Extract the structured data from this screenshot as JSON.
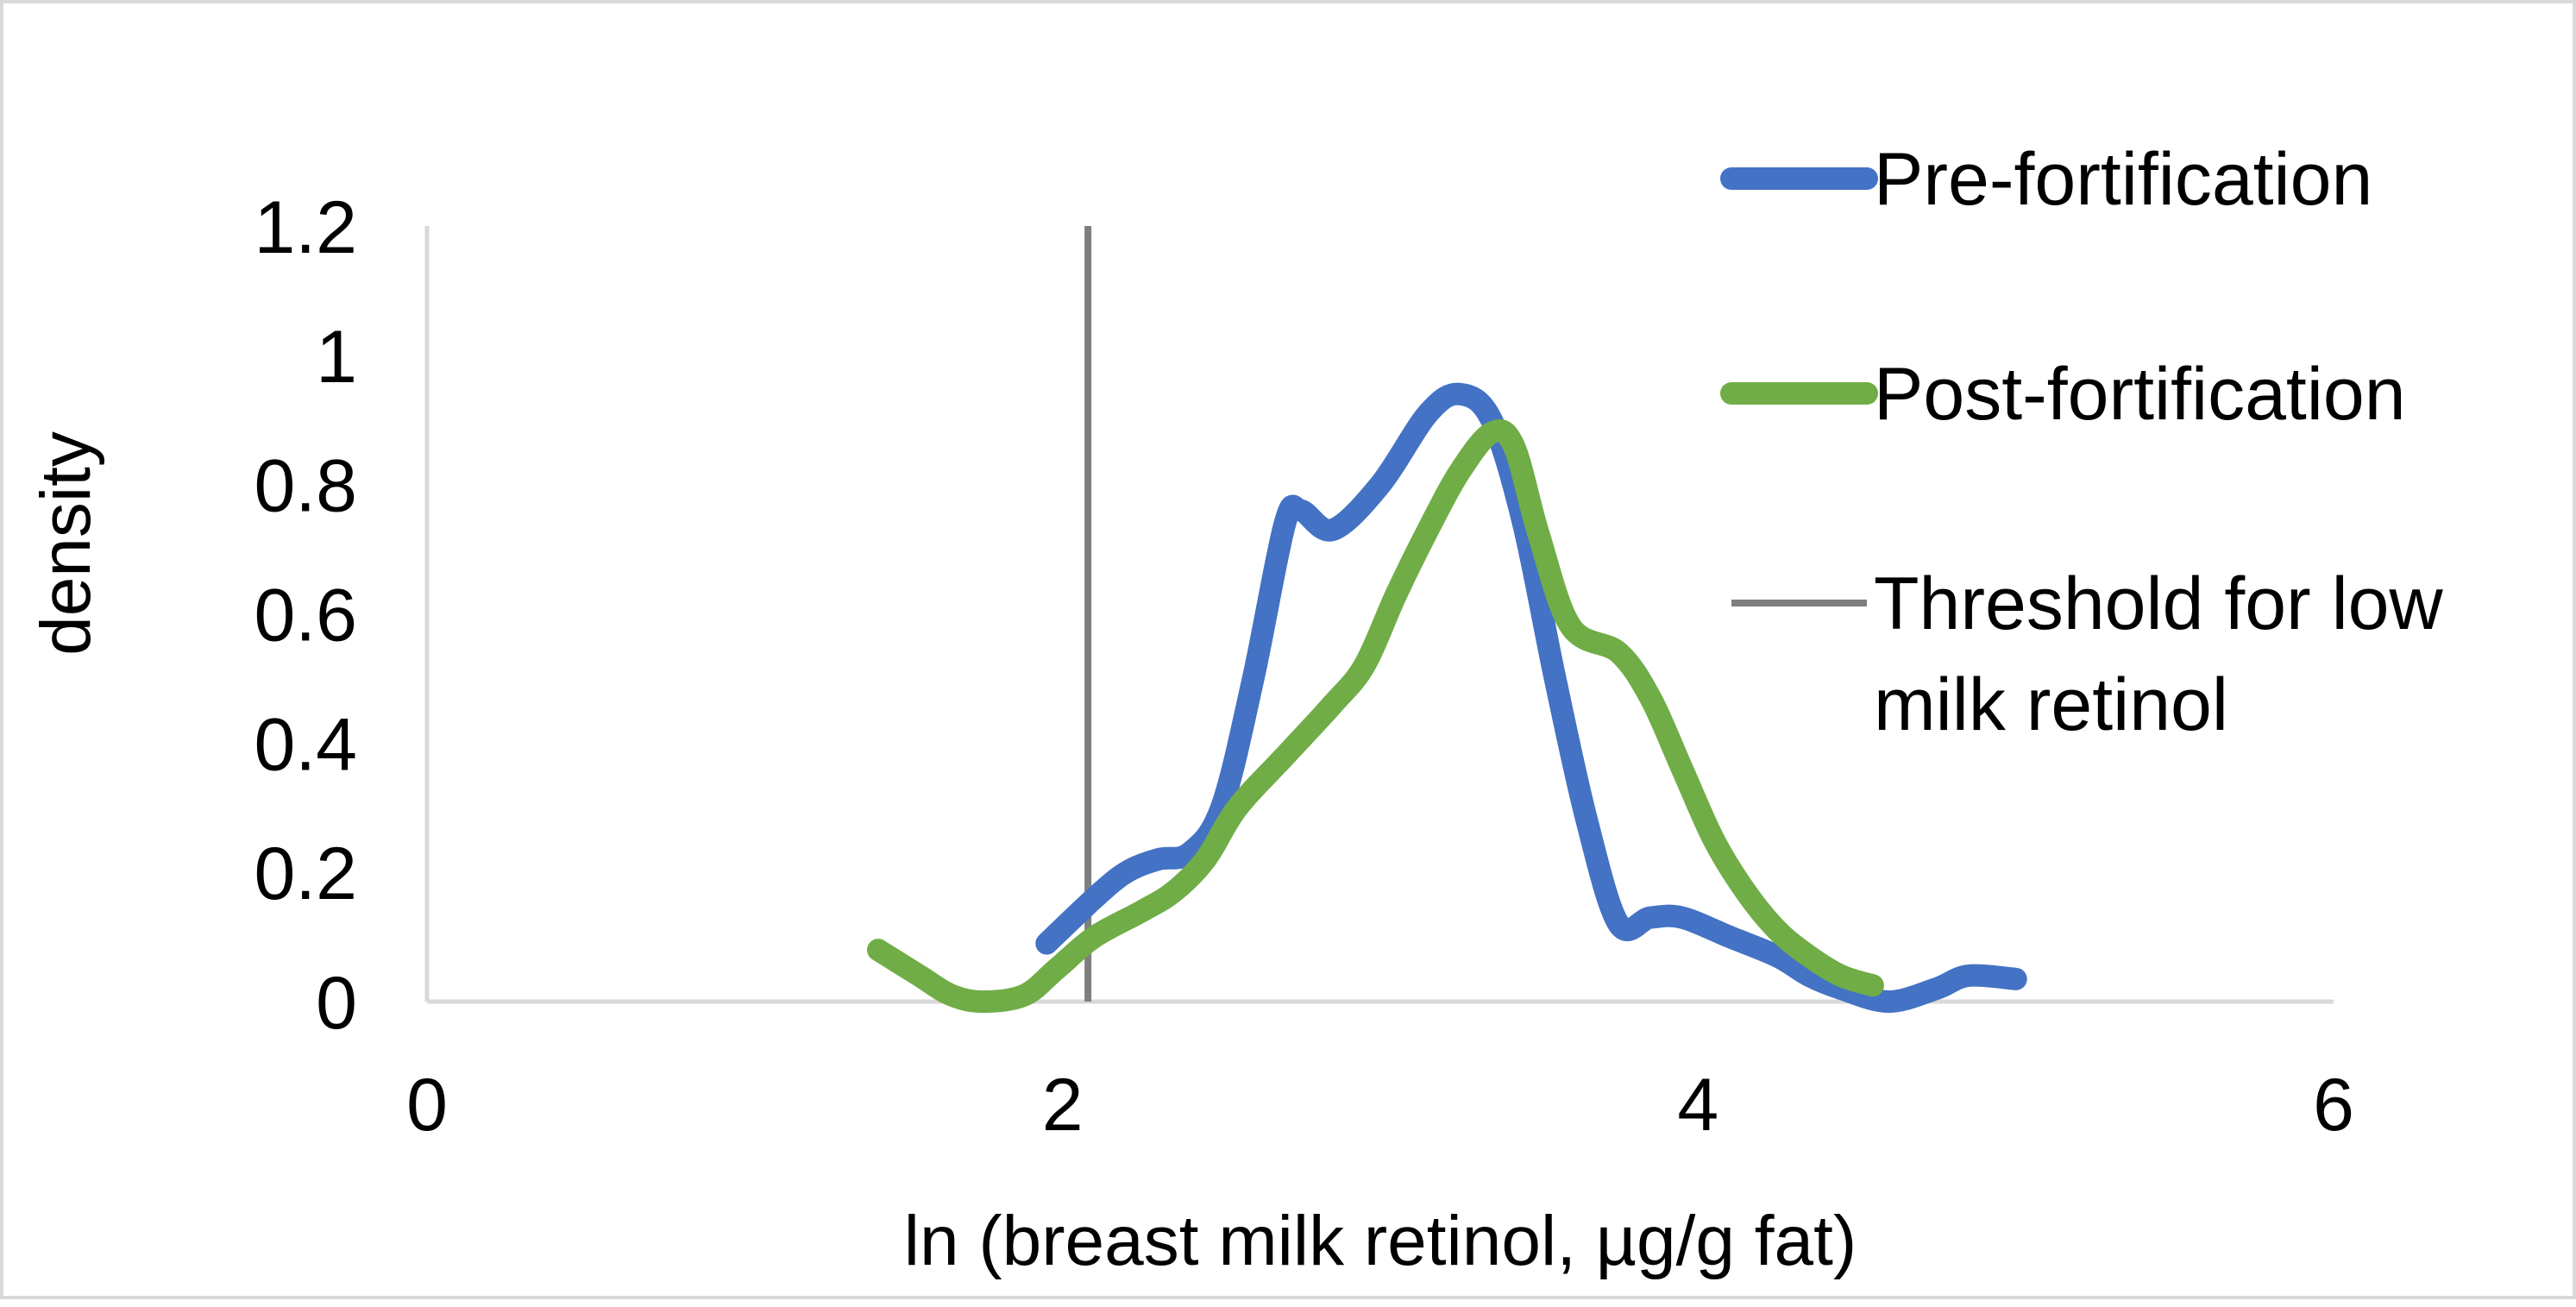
{
  "chart_data": {
    "type": "line",
    "title": "",
    "xlabel": "ln (breast milk retinol, µg/g fat)",
    "ylabel": "density",
    "xlim": [
      0,
      6
    ],
    "ylim": [
      0,
      1.2
    ],
    "x_ticks": [
      0,
      2,
      4,
      6
    ],
    "x_tick_labels": [
      "0",
      "2",
      "4",
      "6"
    ],
    "y_ticks": [
      0,
      0.2,
      0.4,
      0.6,
      0.8,
      1.0,
      1.2
    ],
    "y_tick_labels": [
      "0",
      "0.2",
      "0.4",
      "0.6",
      "0.8",
      "1",
      "1.2"
    ],
    "grid": false,
    "legend_position": "right",
    "series": [
      {
        "name": "Pre-fortification",
        "color": "#4472c4",
        "points": [
          [
            1.95,
            0.09
          ],
          [
            2.1,
            0.16
          ],
          [
            2.2,
            0.2
          ],
          [
            2.3,
            0.22
          ],
          [
            2.4,
            0.23
          ],
          [
            2.5,
            0.3
          ],
          [
            2.6,
            0.5
          ],
          [
            2.7,
            0.74
          ],
          [
            2.75,
            0.76
          ],
          [
            2.85,
            0.73
          ],
          [
            3.0,
            0.8
          ],
          [
            3.15,
            0.91
          ],
          [
            3.25,
            0.94
          ],
          [
            3.35,
            0.9
          ],
          [
            3.45,
            0.74
          ],
          [
            3.55,
            0.5
          ],
          [
            3.65,
            0.28
          ],
          [
            3.75,
            0.12
          ],
          [
            3.85,
            0.13
          ],
          [
            3.95,
            0.13
          ],
          [
            4.1,
            0.1
          ],
          [
            4.25,
            0.07
          ],
          [
            4.35,
            0.04
          ],
          [
            4.45,
            0.02
          ],
          [
            4.6,
            0.0
          ],
          [
            4.75,
            0.02
          ],
          [
            4.85,
            0.04
          ],
          [
            5.0,
            0.035
          ]
        ]
      },
      {
        "name": "Post-fortification",
        "color": "#70ad47",
        "points": [
          [
            1.42,
            0.08
          ],
          [
            1.55,
            0.04
          ],
          [
            1.65,
            0.01
          ],
          [
            1.75,
            0.0
          ],
          [
            1.88,
            0.01
          ],
          [
            1.98,
            0.05
          ],
          [
            2.1,
            0.1
          ],
          [
            2.25,
            0.14
          ],
          [
            2.35,
            0.17
          ],
          [
            2.45,
            0.22
          ],
          [
            2.55,
            0.3
          ],
          [
            2.7,
            0.38
          ],
          [
            2.85,
            0.46
          ],
          [
            2.95,
            0.52
          ],
          [
            3.05,
            0.63
          ],
          [
            3.15,
            0.73
          ],
          [
            3.25,
            0.82
          ],
          [
            3.35,
            0.88
          ],
          [
            3.42,
            0.86
          ],
          [
            3.5,
            0.72
          ],
          [
            3.6,
            0.58
          ],
          [
            3.75,
            0.54
          ],
          [
            3.85,
            0.47
          ],
          [
            3.95,
            0.36
          ],
          [
            4.05,
            0.25
          ],
          [
            4.15,
            0.17
          ],
          [
            4.25,
            0.11
          ],
          [
            4.35,
            0.07
          ],
          [
            4.45,
            0.04
          ],
          [
            4.55,
            0.025
          ]
        ]
      }
    ],
    "reference_lines": [
      {
        "name": "Threshold for low milk retinol",
        "type": "vertical",
        "x": 2.08,
        "color": "#7f7f7f"
      }
    ],
    "legend": [
      {
        "label": "Pre-fortification",
        "color": "#4472c4"
      },
      {
        "label": "Post-fortification",
        "color": "#70ad47"
      },
      {
        "label_lines": [
          "Threshold for low",
          "milk retinol"
        ],
        "color": "#7f7f7f"
      }
    ]
  }
}
